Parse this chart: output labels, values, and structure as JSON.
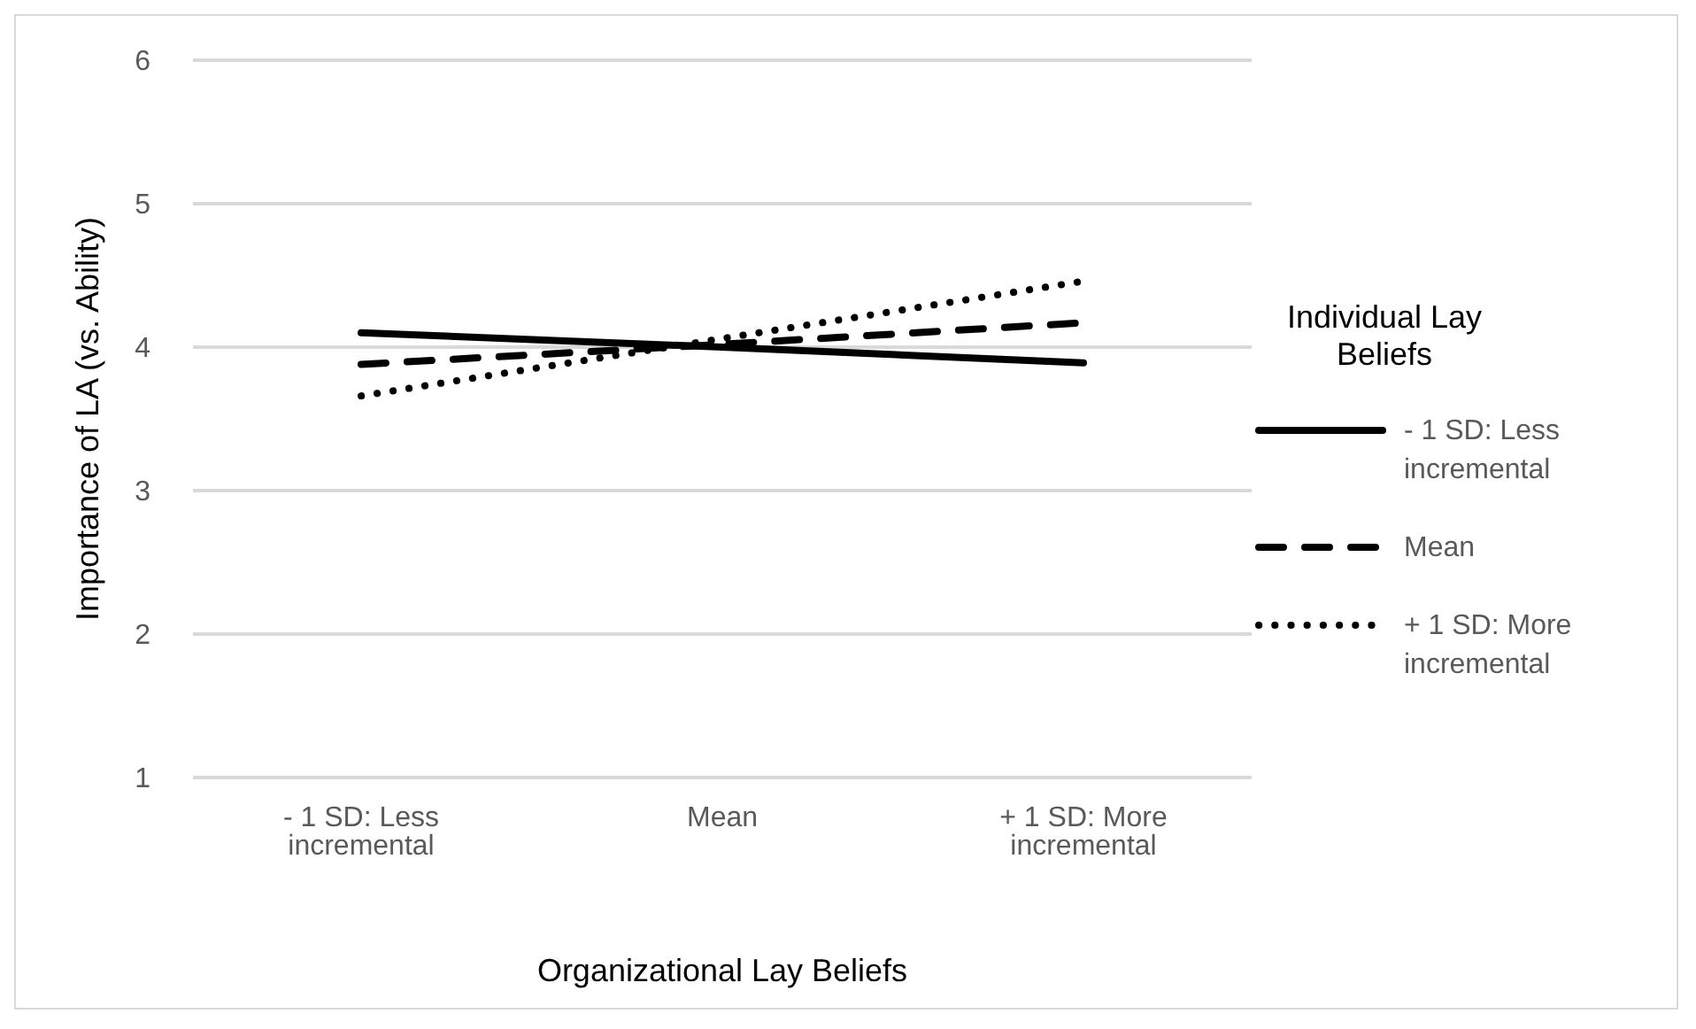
{
  "chart_data": {
    "type": "line",
    "xlabel": "Organizational Lay Beliefs",
    "ylabel": "Importance of LA (vs. Ability)",
    "legend_title": "Individual Lay Beliefs",
    "categories": [
      "- 1 SD: Less incremental",
      "Mean",
      "+ 1 SD: More incremental"
    ],
    "series": [
      {
        "name": "- 1 SD: Less incremental",
        "color": "#000000",
        "line_style": "solid",
        "values": [
          4.1,
          4.0,
          3.89
        ]
      },
      {
        "name": "Mean",
        "color": "#000000",
        "line_style": "dashed",
        "values": [
          3.88,
          4.02,
          4.17
        ]
      },
      {
        "name": "+ 1 SD: More incremental",
        "color": "#000000",
        "line_style": "dotted",
        "values": [
          3.66,
          4.06,
          4.46
        ]
      }
    ],
    "ylim": [
      1,
      6
    ],
    "yticks": [
      1,
      2,
      3,
      4,
      5,
      6
    ],
    "grid": "y",
    "legend": "right",
    "marker": "none"
  }
}
